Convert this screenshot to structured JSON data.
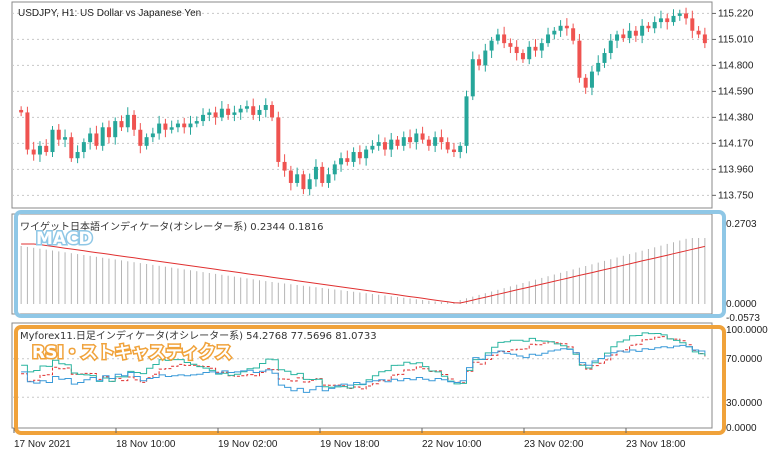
{
  "header": {
    "symbol_title": "USDJPY, H1:  US Dollar vs Japanese Yen"
  },
  "macd_panel": {
    "indicator_label": "MACD",
    "header_text": "ワイゲット日本語インディケータ(オシレーター系) 0.2344 0.1816",
    "y_labels": [
      "0.2703",
      "0.0000",
      "-0.0573"
    ]
  },
  "rsi_panel": {
    "indicator_label": "RSI・ストキャスティクス",
    "header_text": "Myforex11.日足インディケータ(オシレーター系) 54.2768 77.5696 81.0733",
    "y_labels": [
      "100.0000",
      "70.0000",
      "30.0000",
      "0.0000"
    ]
  },
  "colors": {
    "bull": "#26a69a",
    "bear": "#ef5350",
    "macd_bar": "#b5b5b5",
    "signal": "#e03030",
    "rsi": "#3a9ad9",
    "stoch_k": "#2bb5a0",
    "stoch_d": "#e03030",
    "macd_frame": "#8fc7e6",
    "rsi_frame": "#f0a23a",
    "grid": "#c8c8c8"
  },
  "chart_data": {
    "type": "candlestick",
    "title": "USDJPY, H1:  US Dollar vs Japanese Yen",
    "price_ticks": [
      "115.220",
      "115.010",
      "114.800",
      "114.590",
      "114.380",
      "114.170",
      "113.960",
      "113.750"
    ],
    "ylim": [
      113.68,
      115.28
    ],
    "time_labels": [
      "17 Nov 2021",
      "18 Nov 10:00",
      "19 Nov 02:00",
      "19 Nov 18:00",
      "22 Nov 10:00",
      "23 Nov 02:00",
      "23 Nov 18:00"
    ],
    "price_series": [
      114.42,
      114.12,
      114.08,
      114.15,
      114.1,
      114.28,
      114.2,
      114.22,
      114.05,
      114.1,
      114.18,
      114.25,
      114.15,
      114.3,
      114.22,
      114.35,
      114.3,
      114.4,
      114.28,
      114.15,
      114.22,
      114.25,
      114.33,
      114.28,
      114.3,
      114.33,
      114.3,
      114.33,
      114.35,
      114.4,
      114.42,
      114.38,
      114.45,
      114.4,
      114.42,
      114.45,
      114.47,
      114.4,
      114.44,
      114.48,
      114.38,
      114.02,
      113.95,
      113.85,
      113.92,
      113.8,
      113.88,
      113.98,
      113.85,
      113.92,
      114.0,
      114.05,
      114.02,
      114.1,
      114.05,
      114.12,
      114.15,
      114.18,
      114.12,
      114.2,
      114.15,
      114.22,
      114.18,
      114.25,
      114.2,
      114.15,
      114.22,
      114.18,
      114.12,
      114.1,
      114.15,
      114.55,
      114.85,
      114.8,
      114.92,
      115.0,
      115.05,
      114.98,
      114.95,
      114.9,
      114.85,
      114.95,
      114.92,
      114.98,
      115.05,
      115.08,
      115.12,
      115.1,
      115.0,
      114.7,
      114.62,
      114.75,
      114.82,
      114.9,
      115.0,
      115.05,
      115.02,
      115.08,
      115.04,
      115.12,
      115.1,
      115.15,
      115.18,
      115.15,
      115.2,
      115.22,
      115.18,
      115.08,
      115.05,
      114.98
    ],
    "macd": {
      "name": "MACD",
      "values_summary": "histogram with signal line",
      "current": [
        0.2344,
        0.1816
      ],
      "ylim": [
        -0.0573,
        0.2703
      ]
    },
    "oscillators": {
      "name": "RSI / Stochastic",
      "current": [
        54.2768,
        77.5696,
        81.0733
      ],
      "ylim": [
        0,
        100
      ],
      "levels": [
        70,
        30
      ]
    }
  }
}
